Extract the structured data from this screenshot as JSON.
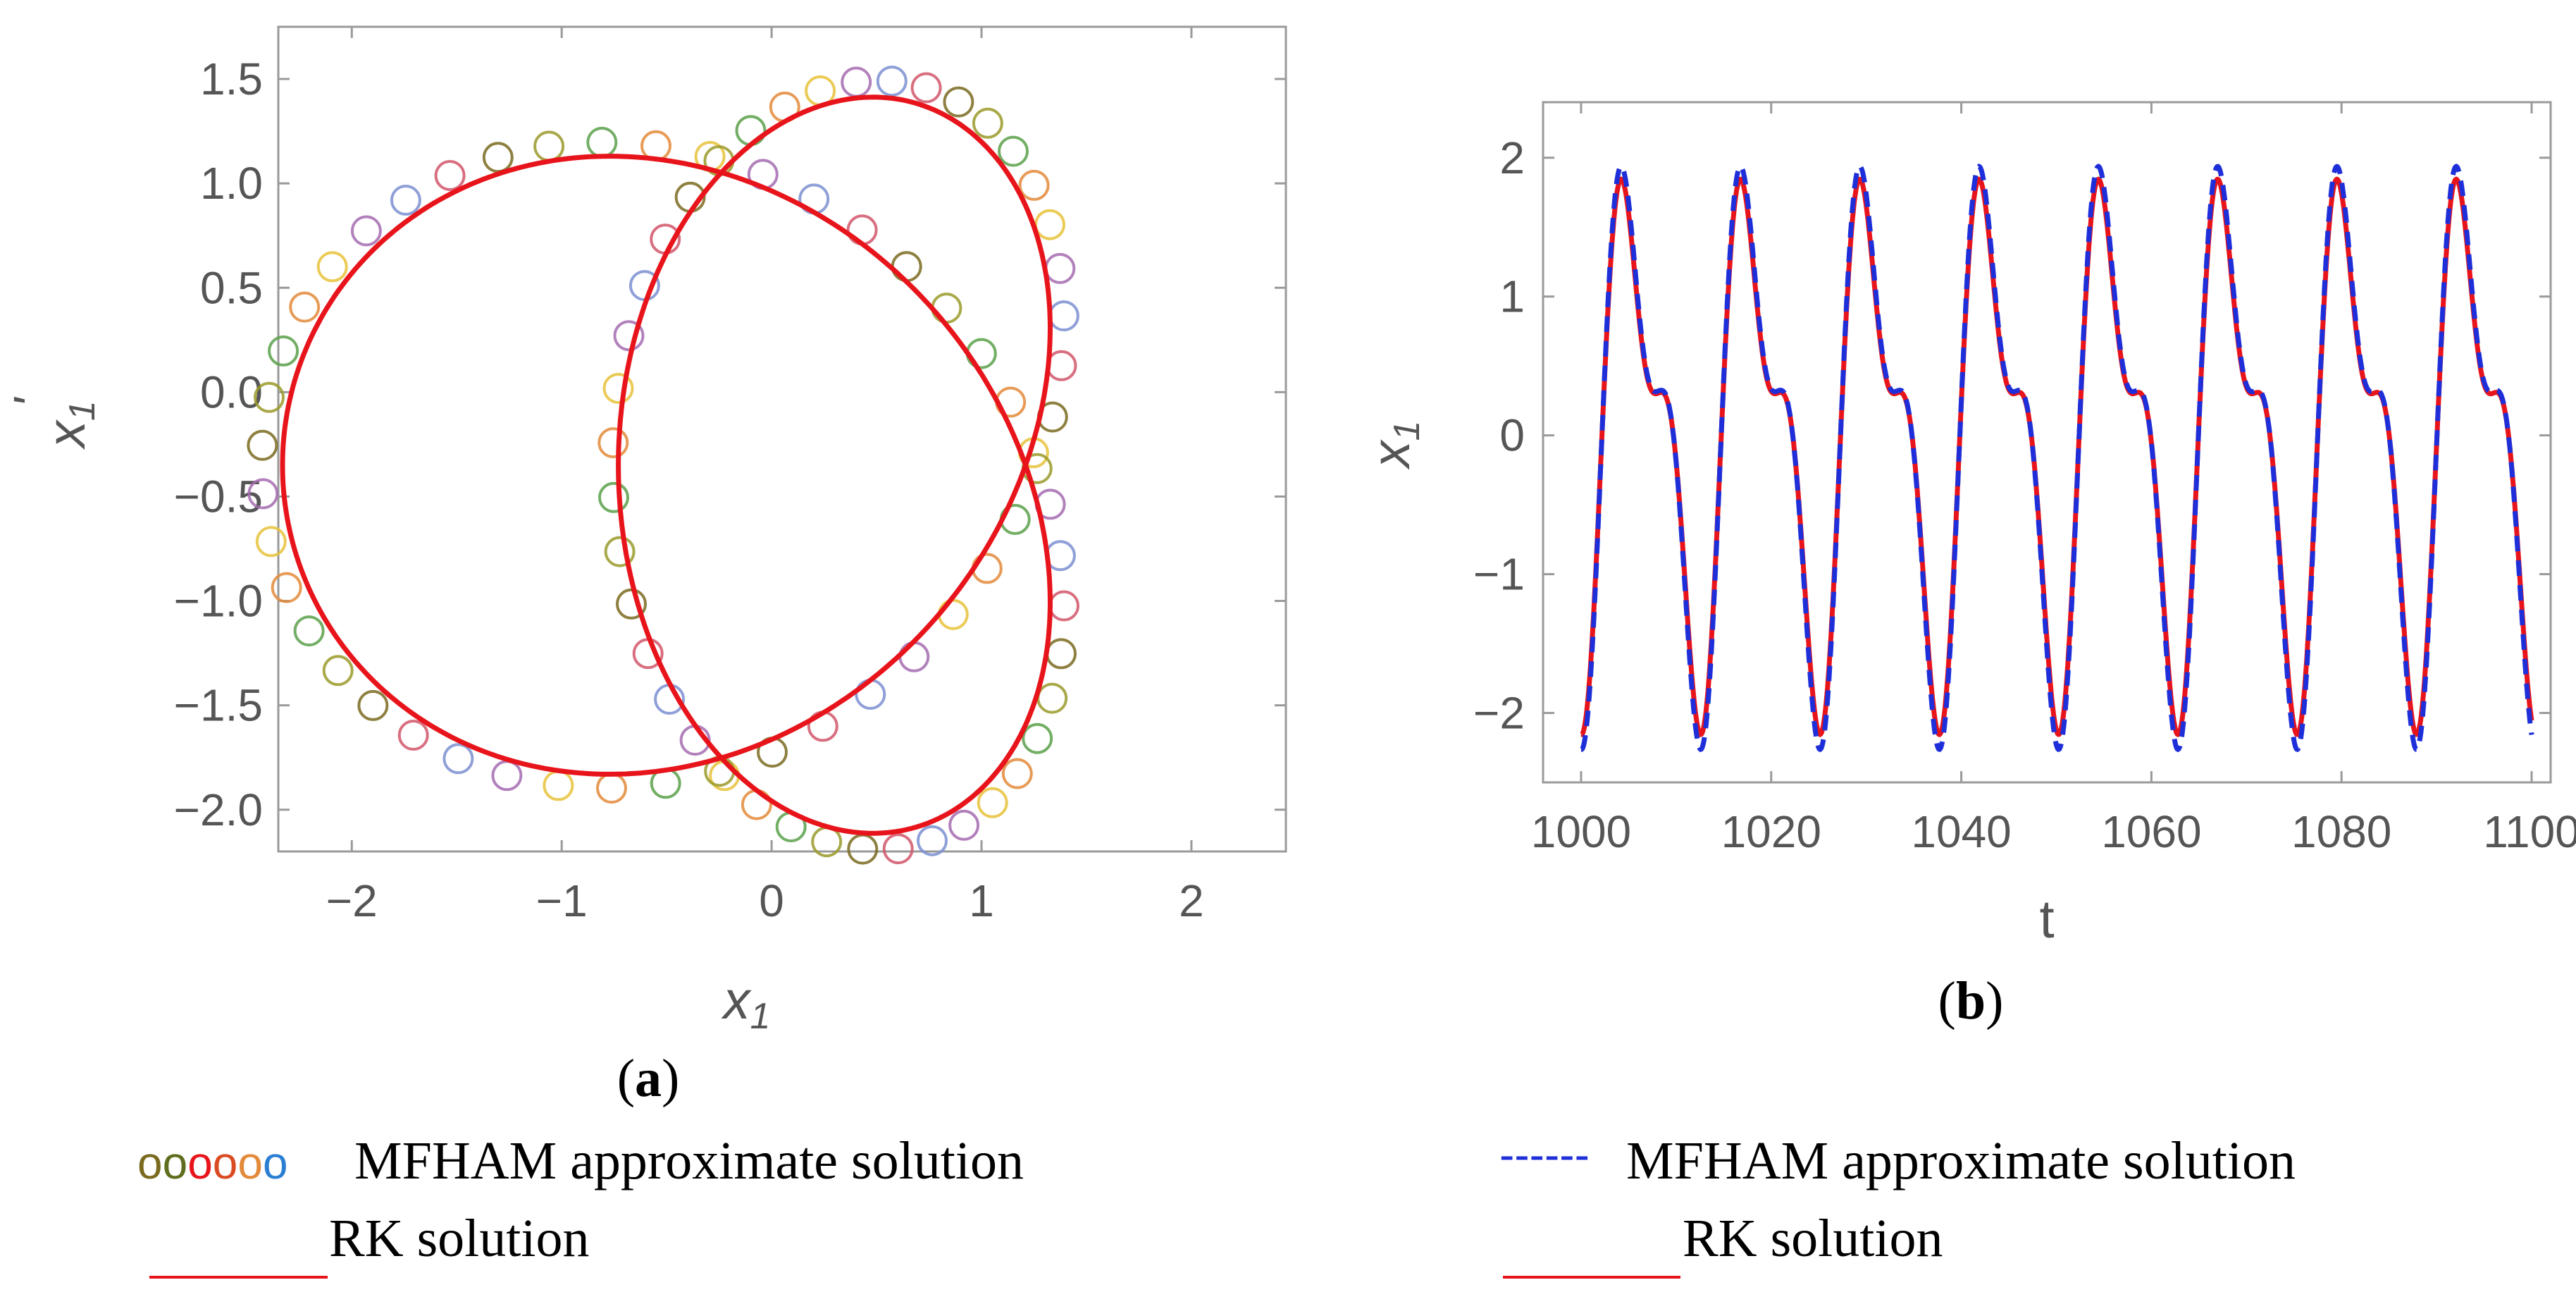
{
  "chart_data": [
    {
      "id": "a",
      "type": "scatter",
      "title": "",
      "caption": "(a)",
      "xlabel": "x1",
      "ylabel": "x1'",
      "xlim": [
        -2.35,
        2.45
      ],
      "ylim": [
        -2.2,
        1.75
      ],
      "xticks": [
        "−2",
        "−1",
        "0",
        "1",
        "2"
      ],
      "xtick_values": [
        -2,
        -1,
        0,
        1,
        2
      ],
      "yticks": [
        "−2.0",
        "−1.5",
        "−1.0",
        "−0.5",
        "0.0",
        "0.5",
        "1.0",
        "1.5"
      ],
      "ytick_values": [
        -2.0,
        -1.5,
        -1.0,
        -0.5,
        0.0,
        0.5,
        1.0,
        1.5
      ],
      "series": [
        {
          "name": "RK solution",
          "style": "line",
          "color": "#e8141b",
          "param": {
            "a1": 0.8,
            "w1": 1.0,
            "a2": 1.4,
            "w2": 2.0,
            "x0": -0.13,
            "y0": -0.24
          }
        },
        {
          "name": "MFHAM approximate solution",
          "style": "circles",
          "colors": [
            "#7a6a1e",
            "#9a9a2a",
            "#5aa04a",
            "#e38a3a",
            "#e8c23a",
            "#a56bb0",
            "#7b8fd1",
            "#d1566a"
          ],
          "count": 86,
          "scale": 1.045
        }
      ]
    },
    {
      "id": "b",
      "type": "line",
      "title": "",
      "caption": "(b)",
      "xlabel": "t",
      "ylabel": "x1",
      "xlim": [
        996,
        1102
      ],
      "ylim": [
        -2.5,
        2.4
      ],
      "xticks": [
        "1000",
        "1020",
        "1040",
        "1060",
        "1080",
        "1100"
      ],
      "xtick_values": [
        1000,
        1020,
        1040,
        1060,
        1080,
        1100
      ],
      "yticks": [
        "−2",
        "−1",
        "0",
        "1",
        "2"
      ],
      "ytick_values": [
        -2,
        -1,
        0,
        1,
        2
      ],
      "x_range": [
        1000,
        1100
      ],
      "series": [
        {
          "name": "MFHAM approximate solution",
          "style": "dashed",
          "color": "#1e2fd9",
          "amp_scale": 1.05
        },
        {
          "name": "RK solution",
          "style": "solid",
          "color": "#e8141b",
          "amp_scale": 1.0
        }
      ],
      "signal": {
        "a1": 1.55,
        "period1": 12.55,
        "a2": 0.78,
        "period2": 6.275,
        "phase": -1.2
      }
    }
  ],
  "legend_left": {
    "markers": [
      "o",
      "o",
      "o",
      "o",
      "o",
      "o"
    ],
    "marker_colors": [
      "#7a6a1e",
      "#5e6e1e",
      "#e8141b",
      "#d94b23",
      "#e38a3a",
      "#2b7fd3"
    ],
    "line1": "MFHAM approximate solution",
    "line2": "RK solution",
    "rk_color": "#e8141b"
  },
  "legend_right": {
    "dash": "------",
    "dash_color": "#1e2fd9",
    "line1": "MFHAM approximate solution",
    "line2": "RK solution",
    "rk_color": "#e8141b"
  },
  "captions": {
    "a_open": "(",
    "a_letter": "a",
    "a_close": ")",
    "b_open": "(",
    "b_letter": "b",
    "b_close": ")"
  }
}
